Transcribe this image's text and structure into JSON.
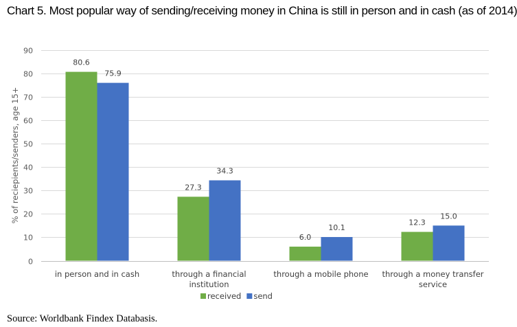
{
  "chart_data": {
    "type": "bar",
    "title": "Chart 5. Most popular way of sending/receiving money in China is still in person and in cash (as of 2014)",
    "ylabel": "% of reciepients/senders, age 15+",
    "xlabel": "",
    "ylim": [
      0,
      90
    ],
    "yticks": [
      "0",
      "10",
      "20",
      "30",
      "40",
      "50",
      "60",
      "70",
      "80",
      "90"
    ],
    "categories": [
      [
        "in person and in cash"
      ],
      [
        "through a financial",
        "institution"
      ],
      [
        "through a mobile phone"
      ],
      [
        "through a money transfer",
        "service"
      ]
    ],
    "series": [
      {
        "name": "received",
        "color": "#70AD47",
        "values": [
          80.6,
          27.3,
          6.0,
          12.3
        ],
        "labels": [
          "80.6",
          "27.3",
          "6.0",
          "12.3"
        ]
      },
      {
        "name": "send",
        "color": "#4472C4",
        "values": [
          75.9,
          34.3,
          10.1,
          15.0
        ],
        "labels": [
          "75.9",
          "34.3",
          "10.1",
          "15.0"
        ]
      }
    ],
    "grid": true,
    "legend": "bottom"
  },
  "source": "Source: Worldbank Findex Databasis."
}
